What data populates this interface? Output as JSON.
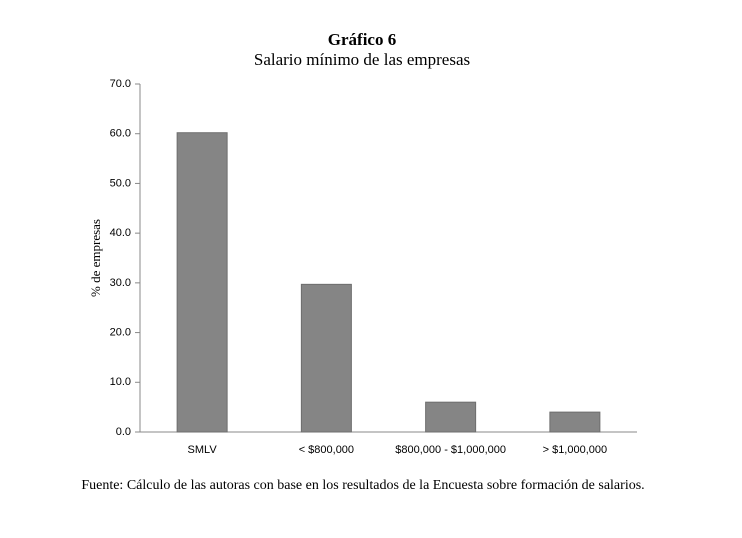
{
  "chart_data": {
    "type": "bar",
    "title": "Gráfico 6",
    "subtitle": "Salario mínimo de las empresas",
    "y_label": "% de empresas",
    "categories": [
      "SMLV",
      "< $800,000",
      "$800,000 - $1,000,000",
      "> $1,000,000"
    ],
    "values": [
      60.2,
      29.7,
      6.0,
      4.0
    ],
    "color": "#858585",
    "ylim": [
      0,
      70
    ],
    "yticks": [
      {
        "value": 0,
        "label": "0.0"
      },
      {
        "value": 10,
        "label": "10.0"
      },
      {
        "value": 20,
        "label": "20.0"
      },
      {
        "value": 30,
        "label": "30.0"
      },
      {
        "value": 40,
        "label": "40.0"
      },
      {
        "value": 50,
        "label": "50.0"
      },
      {
        "value": 60,
        "label": "60.0"
      },
      {
        "value": 70,
        "label": "70.0"
      }
    ],
    "grid": false,
    "source": "Fuente: Cálculo de las autoras con base en los resultados de la Encuesta sobre formación de salarios."
  }
}
